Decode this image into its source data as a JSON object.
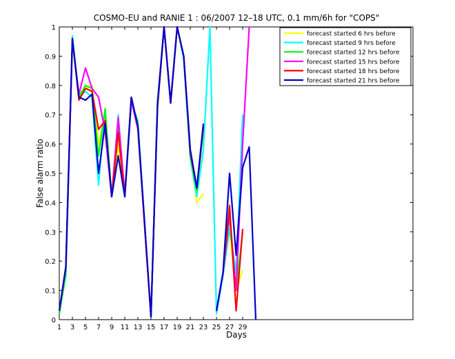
{
  "chart_data": {
    "type": "line",
    "title": "COSMO-EU and RANIE 1 : 06/2007 12–18 UTC, 0.1 mm/6h for \"COPS\"",
    "xlabel": "Days",
    "ylabel": "False alarm ratio",
    "xlim": [
      1,
      55
    ],
    "ylim": [
      0,
      1
    ],
    "x_ticks": [
      "1",
      "3",
      "5",
      "7",
      "9",
      "11",
      "13",
      "15",
      "17",
      "19",
      "21",
      "23",
      "25",
      "27",
      "29"
    ],
    "y_ticks": [
      "0",
      "0.1",
      "0.2",
      "0.3",
      "0.4",
      "0.5",
      "0.6",
      "0.7",
      "0.8",
      "0.9",
      "1"
    ],
    "grid": false,
    "legend_position": "top-right",
    "x": [
      1,
      2,
      3,
      4,
      5,
      6,
      7,
      8,
      9,
      10,
      11,
      12,
      13,
      14,
      15,
      16,
      17,
      18,
      19,
      20,
      21,
      22,
      23,
      24,
      25,
      26,
      27,
      28,
      29,
      30,
      31
    ],
    "series": [
      {
        "name": "forecast started 6 hrs before",
        "color": "#ffff00",
        "values": [
          0.02,
          0.15,
          0.95,
          0.77,
          0.79,
          0.8,
          0.6,
          0.7,
          0.42,
          0.6,
          0.43,
          0.74,
          0.68,
          0.34,
          0.01,
          0.72,
          1.0,
          0.74,
          1.0,
          0.9,
          0.57,
          0.4,
          0.43,
          null,
          null,
          0.17,
          0.3,
          0.1,
          0.17,
          null,
          null
        ]
      },
      {
        "name": "forecast started 9 hrs before",
        "color": "#00ffff",
        "values": [
          0.02,
          0.15,
          0.97,
          0.76,
          0.78,
          0.76,
          0.46,
          0.72,
          0.42,
          0.7,
          0.42,
          0.74,
          0.68,
          0.34,
          0.01,
          0.75,
          1.0,
          0.74,
          1.0,
          0.89,
          0.55,
          0.42,
          0.58,
          1.0,
          0.02,
          0.15,
          0.31,
          0.16,
          0.7,
          null,
          null
        ]
      },
      {
        "name": "forecast started 12 hrs before",
        "color": "#00ff00",
        "values": [
          0.02,
          0.16,
          0.96,
          0.76,
          0.8,
          0.79,
          0.56,
          0.72,
          0.42,
          0.66,
          0.42,
          0.75,
          0.67,
          0.33,
          0.01,
          0.73,
          1.0,
          0.74,
          1.0,
          0.9,
          0.56,
          0.44,
          0.65,
          null,
          0.03,
          0.16,
          0.35,
          0.1,
          0.3,
          null,
          null
        ]
      },
      {
        "name": "forecast started 15 hrs before",
        "color": "#ff00ff",
        "values": [
          0.03,
          0.18,
          0.95,
          0.77,
          0.86,
          0.79,
          0.76,
          0.64,
          0.42,
          0.69,
          0.43,
          0.75,
          0.65,
          0.33,
          0.01,
          0.73,
          1.0,
          0.74,
          1.0,
          0.9,
          0.58,
          0.45,
          0.66,
          null,
          0.03,
          0.16,
          0.36,
          0.1,
          0.6,
          1.0,
          null
        ]
      },
      {
        "name": "forecast started 18 hrs before",
        "color": "#ff0000",
        "values": [
          0.03,
          0.18,
          0.96,
          0.75,
          0.79,
          0.78,
          0.65,
          0.68,
          0.42,
          0.64,
          0.42,
          0.76,
          0.66,
          0.33,
          0.01,
          0.74,
          1.0,
          0.74,
          1.0,
          0.9,
          0.57,
          0.45,
          0.66,
          null,
          0.03,
          0.16,
          0.39,
          0.03,
          0.31,
          null,
          null
        ]
      },
      {
        "name": "forecast started 21 hrs before",
        "color": "#0000cc",
        "values": [
          0.03,
          0.18,
          0.96,
          0.76,
          0.75,
          0.77,
          0.5,
          0.67,
          0.42,
          0.56,
          0.42,
          0.76,
          0.66,
          0.34,
          0.01,
          0.73,
          1.0,
          0.74,
          1.0,
          0.9,
          0.58,
          0.45,
          0.67,
          null,
          0.03,
          0.16,
          0.5,
          0.22,
          0.52,
          0.59,
          0.0
        ]
      }
    ]
  }
}
